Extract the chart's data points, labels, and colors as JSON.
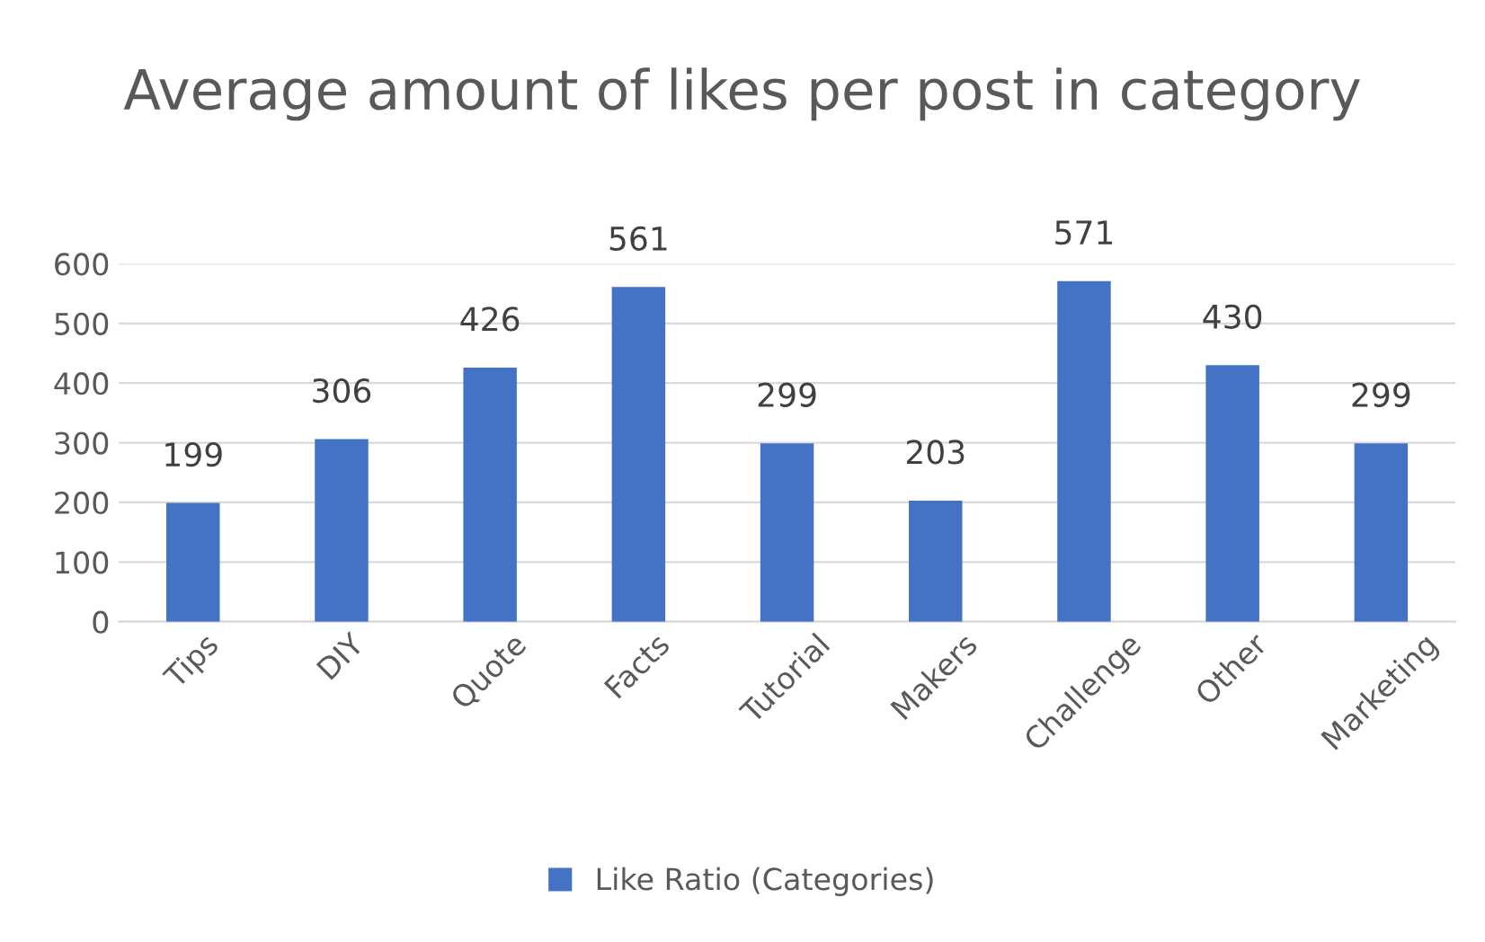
{
  "chart_data": {
    "type": "bar",
    "title": "Average amount of likes per post in category",
    "categories": [
      "Tips",
      "DIY",
      "Quote",
      "Facts",
      "Tutorial",
      "Makers",
      "Challenge",
      "Other",
      "Marketing"
    ],
    "series": [
      {
        "name": "Like Ratio (Categories)",
        "color": "#4472c4",
        "values": [
          199,
          306,
          426,
          561,
          299,
          203,
          571,
          430,
          299
        ]
      }
    ],
    "ylim": [
      0,
      600
    ],
    "yticks": [
      0,
      100,
      200,
      300,
      400,
      500,
      600
    ],
    "grid": "y",
    "legend": "bottom",
    "data_labels": true
  }
}
